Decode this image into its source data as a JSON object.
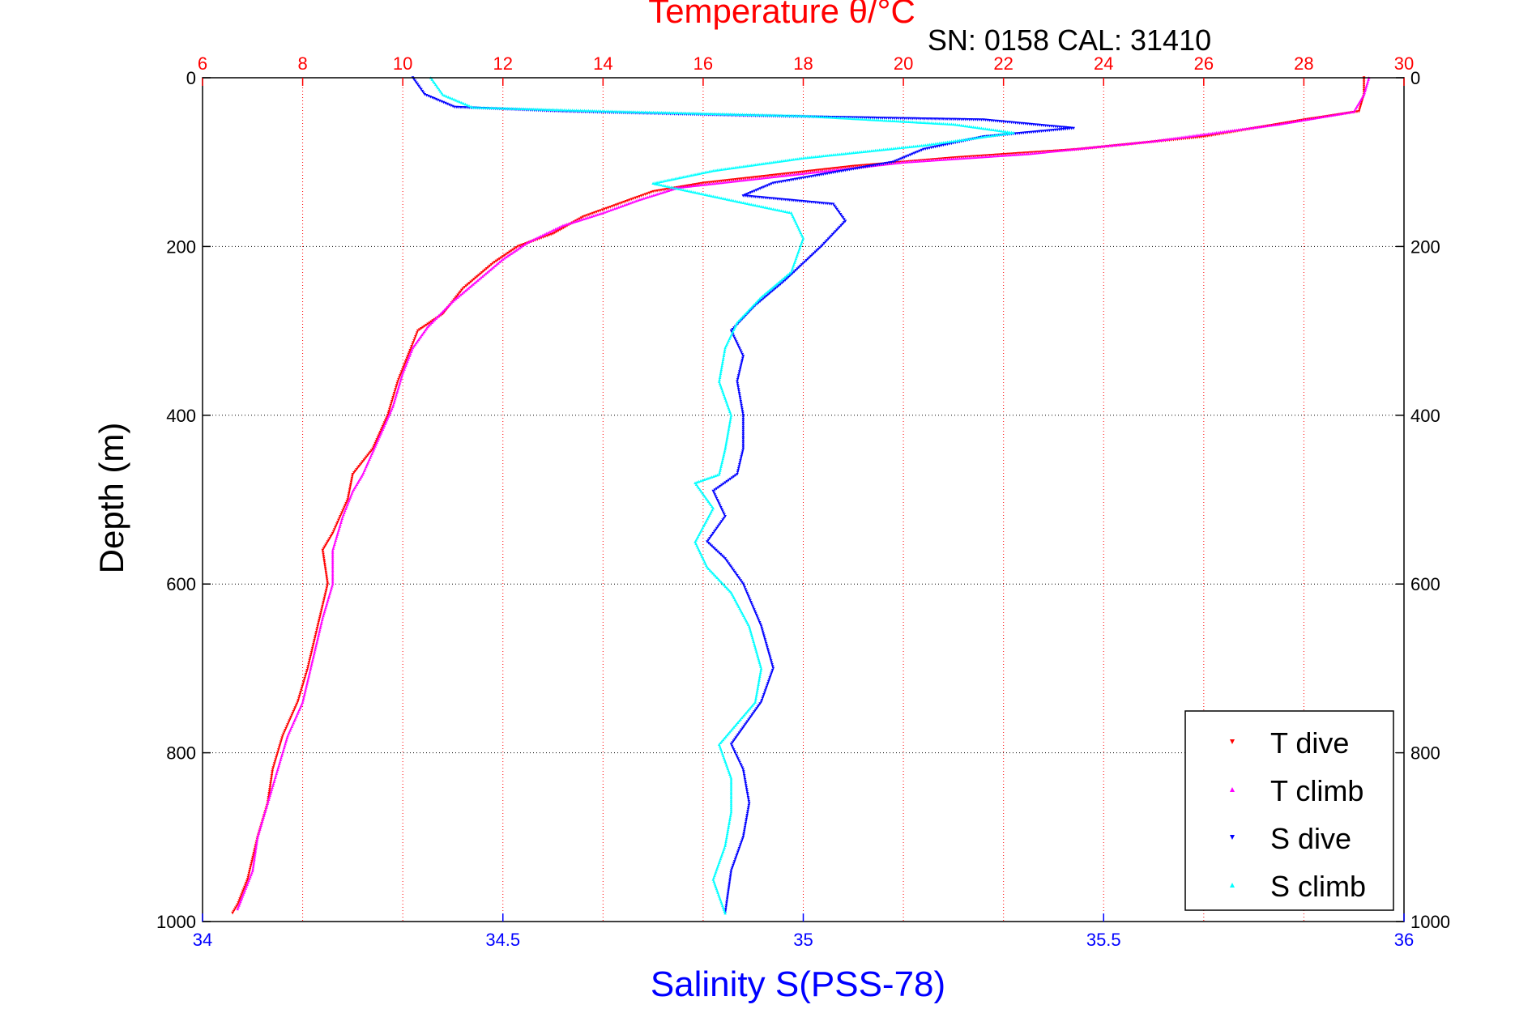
{
  "chart_data": {
    "type": "scatter",
    "title": "Temperature θ/°C",
    "subtitle": "SN: 0158  CAL: 31410",
    "ylabel": "Depth (m)",
    "xlabel_bottom": "Salinity S(PSS-78)",
    "xlabel_top": "Temperature θ/°C",
    "ylim": [
      0,
      1000
    ],
    "y_reversed": true,
    "y_ticks": [
      0,
      200,
      400,
      600,
      800,
      1000
    ],
    "x_bottom_lim": [
      34,
      36
    ],
    "x_bottom_ticks": [
      34,
      34.5,
      35,
      35.5,
      36
    ],
    "x_bottom_tick_labels": [
      "34",
      "34.5",
      "35",
      "35.5",
      "36"
    ],
    "x_top_lim": [
      6,
      30
    ],
    "x_top_ticks": [
      6,
      8,
      10,
      12,
      14,
      16,
      18,
      20,
      22,
      24,
      26,
      28,
      30
    ],
    "grid": true,
    "legend_position": "bottom-right",
    "colors": {
      "temperature_axis": "#ff0000",
      "salinity_axis": "#0000ff",
      "t_dive": "#ff0000",
      "t_climb": "#ff00ff",
      "s_dive": "#0000ff",
      "s_climb": "#00ffff"
    },
    "series": [
      {
        "name": "T dive",
        "axis": "top",
        "color": "#ff0000",
        "marker": "triangle-down",
        "points": [
          [
            29.2,
            0
          ],
          [
            29.2,
            20
          ],
          [
            29.1,
            40
          ],
          [
            28.0,
            50
          ],
          [
            26.0,
            70
          ],
          [
            23.5,
            85
          ],
          [
            21.0,
            95
          ],
          [
            19.0,
            105
          ],
          [
            17.5,
            115
          ],
          [
            16.0,
            125
          ],
          [
            15.0,
            135
          ],
          [
            14.3,
            150
          ],
          [
            13.6,
            165
          ],
          [
            13.0,
            185
          ],
          [
            12.3,
            200
          ],
          [
            11.8,
            220
          ],
          [
            11.2,
            250
          ],
          [
            10.8,
            280
          ],
          [
            10.3,
            300
          ],
          [
            10.1,
            330
          ],
          [
            9.9,
            360
          ],
          [
            9.7,
            400
          ],
          [
            9.4,
            440
          ],
          [
            9.0,
            470
          ],
          [
            8.9,
            500
          ],
          [
            8.6,
            540
          ],
          [
            8.4,
            560
          ],
          [
            8.5,
            600
          ],
          [
            8.3,
            650
          ],
          [
            8.1,
            700
          ],
          [
            7.9,
            740
          ],
          [
            7.6,
            780
          ],
          [
            7.4,
            820
          ],
          [
            7.3,
            860
          ],
          [
            7.1,
            900
          ],
          [
            6.9,
            950
          ],
          [
            6.7,
            980
          ],
          [
            6.6,
            990
          ]
        ]
      },
      {
        "name": "T climb",
        "axis": "top",
        "color": "#ff00ff",
        "marker": "triangle-up",
        "points": [
          [
            29.3,
            0
          ],
          [
            29.2,
            20
          ],
          [
            29.0,
            40
          ],
          [
            27.5,
            55
          ],
          [
            25.0,
            75
          ],
          [
            22.5,
            90
          ],
          [
            20.0,
            100
          ],
          [
            18.5,
            110
          ],
          [
            17.0,
            120
          ],
          [
            15.5,
            130
          ],
          [
            14.7,
            145
          ],
          [
            14.0,
            160
          ],
          [
            13.2,
            175
          ],
          [
            12.5,
            195
          ],
          [
            12.0,
            215
          ],
          [
            11.5,
            240
          ],
          [
            11.0,
            265
          ],
          [
            10.5,
            295
          ],
          [
            10.2,
            320
          ],
          [
            10.0,
            350
          ],
          [
            9.8,
            390
          ],
          [
            9.5,
            430
          ],
          [
            9.2,
            470
          ],
          [
            9.0,
            490
          ],
          [
            8.8,
            520
          ],
          [
            8.6,
            560
          ],
          [
            8.6,
            600
          ],
          [
            8.4,
            640
          ],
          [
            8.2,
            690
          ],
          [
            8.0,
            740
          ],
          [
            7.7,
            780
          ],
          [
            7.5,
            820
          ],
          [
            7.3,
            860
          ],
          [
            7.1,
            900
          ],
          [
            7.0,
            940
          ],
          [
            6.8,
            970
          ],
          [
            6.7,
            985
          ]
        ]
      },
      {
        "name": "S dive",
        "axis": "bottom",
        "color": "#0000ff",
        "marker": "triangle-down",
        "points": [
          [
            34.35,
            0
          ],
          [
            34.37,
            20
          ],
          [
            34.42,
            35
          ],
          [
            34.6,
            40
          ],
          [
            34.9,
            45
          ],
          [
            35.3,
            50
          ],
          [
            35.45,
            60
          ],
          [
            35.3,
            70
          ],
          [
            35.2,
            85
          ],
          [
            35.15,
            100
          ],
          [
            34.95,
            125
          ],
          [
            34.9,
            140
          ],
          [
            35.05,
            150
          ],
          [
            35.07,
            170
          ],
          [
            35.03,
            200
          ],
          [
            34.97,
            240
          ],
          [
            34.92,
            270
          ],
          [
            34.88,
            300
          ],
          [
            34.9,
            330
          ],
          [
            34.89,
            360
          ],
          [
            34.9,
            400
          ],
          [
            34.9,
            440
          ],
          [
            34.89,
            470
          ],
          [
            34.85,
            490
          ],
          [
            34.87,
            520
          ],
          [
            34.84,
            550
          ],
          [
            34.87,
            570
          ],
          [
            34.9,
            600
          ],
          [
            34.93,
            650
          ],
          [
            34.95,
            700
          ],
          [
            34.93,
            740
          ],
          [
            34.88,
            790
          ],
          [
            34.9,
            820
          ],
          [
            34.91,
            860
          ],
          [
            34.9,
            900
          ],
          [
            34.88,
            940
          ],
          [
            34.87,
            990
          ]
        ]
      },
      {
        "name": "S climb",
        "axis": "bottom",
        "color": "#00ffff",
        "marker": "triangle-up",
        "points": [
          [
            34.38,
            0
          ],
          [
            34.4,
            20
          ],
          [
            34.45,
            35
          ],
          [
            34.7,
            40
          ],
          [
            35.0,
            45
          ],
          [
            35.25,
            55
          ],
          [
            35.35,
            65
          ],
          [
            35.2,
            80
          ],
          [
            35.0,
            95
          ],
          [
            34.85,
            110
          ],
          [
            34.75,
            125
          ],
          [
            34.88,
            145
          ],
          [
            34.98,
            160
          ],
          [
            35.0,
            190
          ],
          [
            34.98,
            230
          ],
          [
            34.93,
            260
          ],
          [
            34.89,
            290
          ],
          [
            34.87,
            320
          ],
          [
            34.86,
            360
          ],
          [
            34.88,
            400
          ],
          [
            34.87,
            440
          ],
          [
            34.86,
            470
          ],
          [
            34.82,
            480
          ],
          [
            34.85,
            510
          ],
          [
            34.82,
            550
          ],
          [
            34.84,
            580
          ],
          [
            34.88,
            610
          ],
          [
            34.91,
            650
          ],
          [
            34.93,
            700
          ],
          [
            34.92,
            740
          ],
          [
            34.86,
            790
          ],
          [
            34.88,
            830
          ],
          [
            34.88,
            870
          ],
          [
            34.87,
            910
          ],
          [
            34.85,
            950
          ],
          [
            34.87,
            990
          ]
        ]
      }
    ]
  }
}
